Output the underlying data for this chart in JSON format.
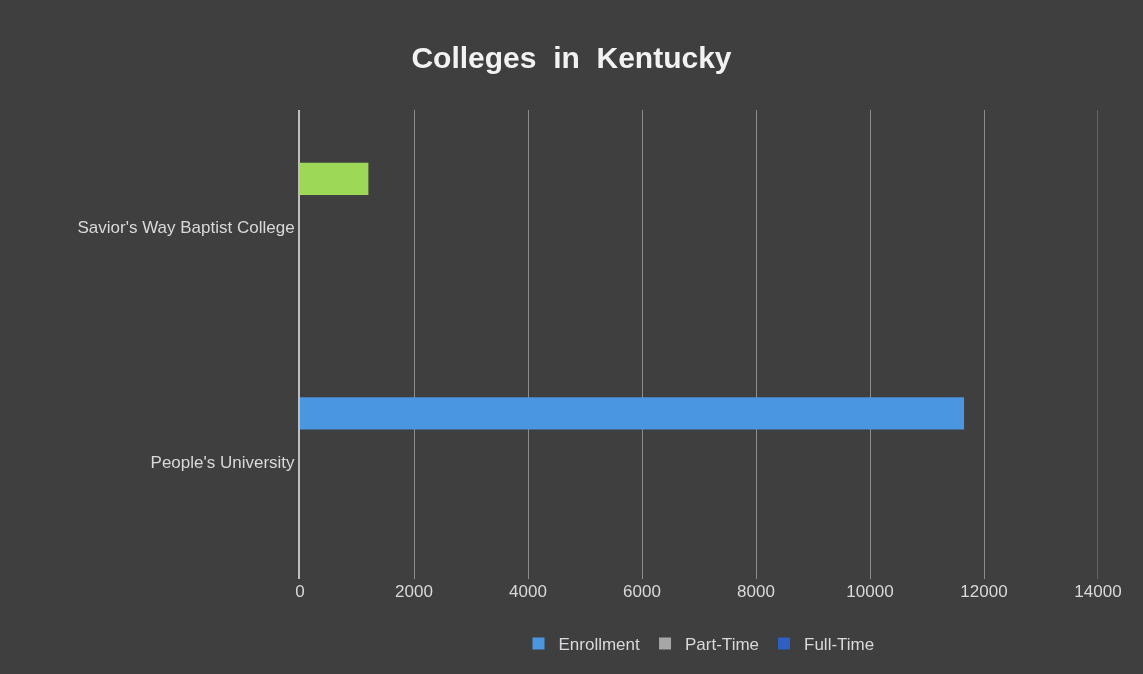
{
  "chart_data": {
    "type": "bar",
    "orientation": "horizontal",
    "title": "Colleges  in  Kentucky",
    "categories": [
      "Savior's Way Baptist College",
      "People's University"
    ],
    "series": [
      {
        "name": "Enrollment",
        "color": "#4a96e0",
        "colors": [
          "#9dd856",
          "#4a96e0"
        ],
        "values": [
          1200,
          11650
        ]
      },
      {
        "name": "Part-Time",
        "color": "#a6a6a6",
        "values": [
          0,
          0
        ]
      },
      {
        "name": "Full-Time",
        "color": "#2f5fc0",
        "values": [
          0,
          0
        ]
      }
    ],
    "xlim": [
      0,
      14000
    ],
    "xticks": [
      0,
      2000,
      4000,
      6000,
      8000,
      10000,
      12000,
      14000
    ],
    "grid": "x",
    "legend": "bottom"
  }
}
